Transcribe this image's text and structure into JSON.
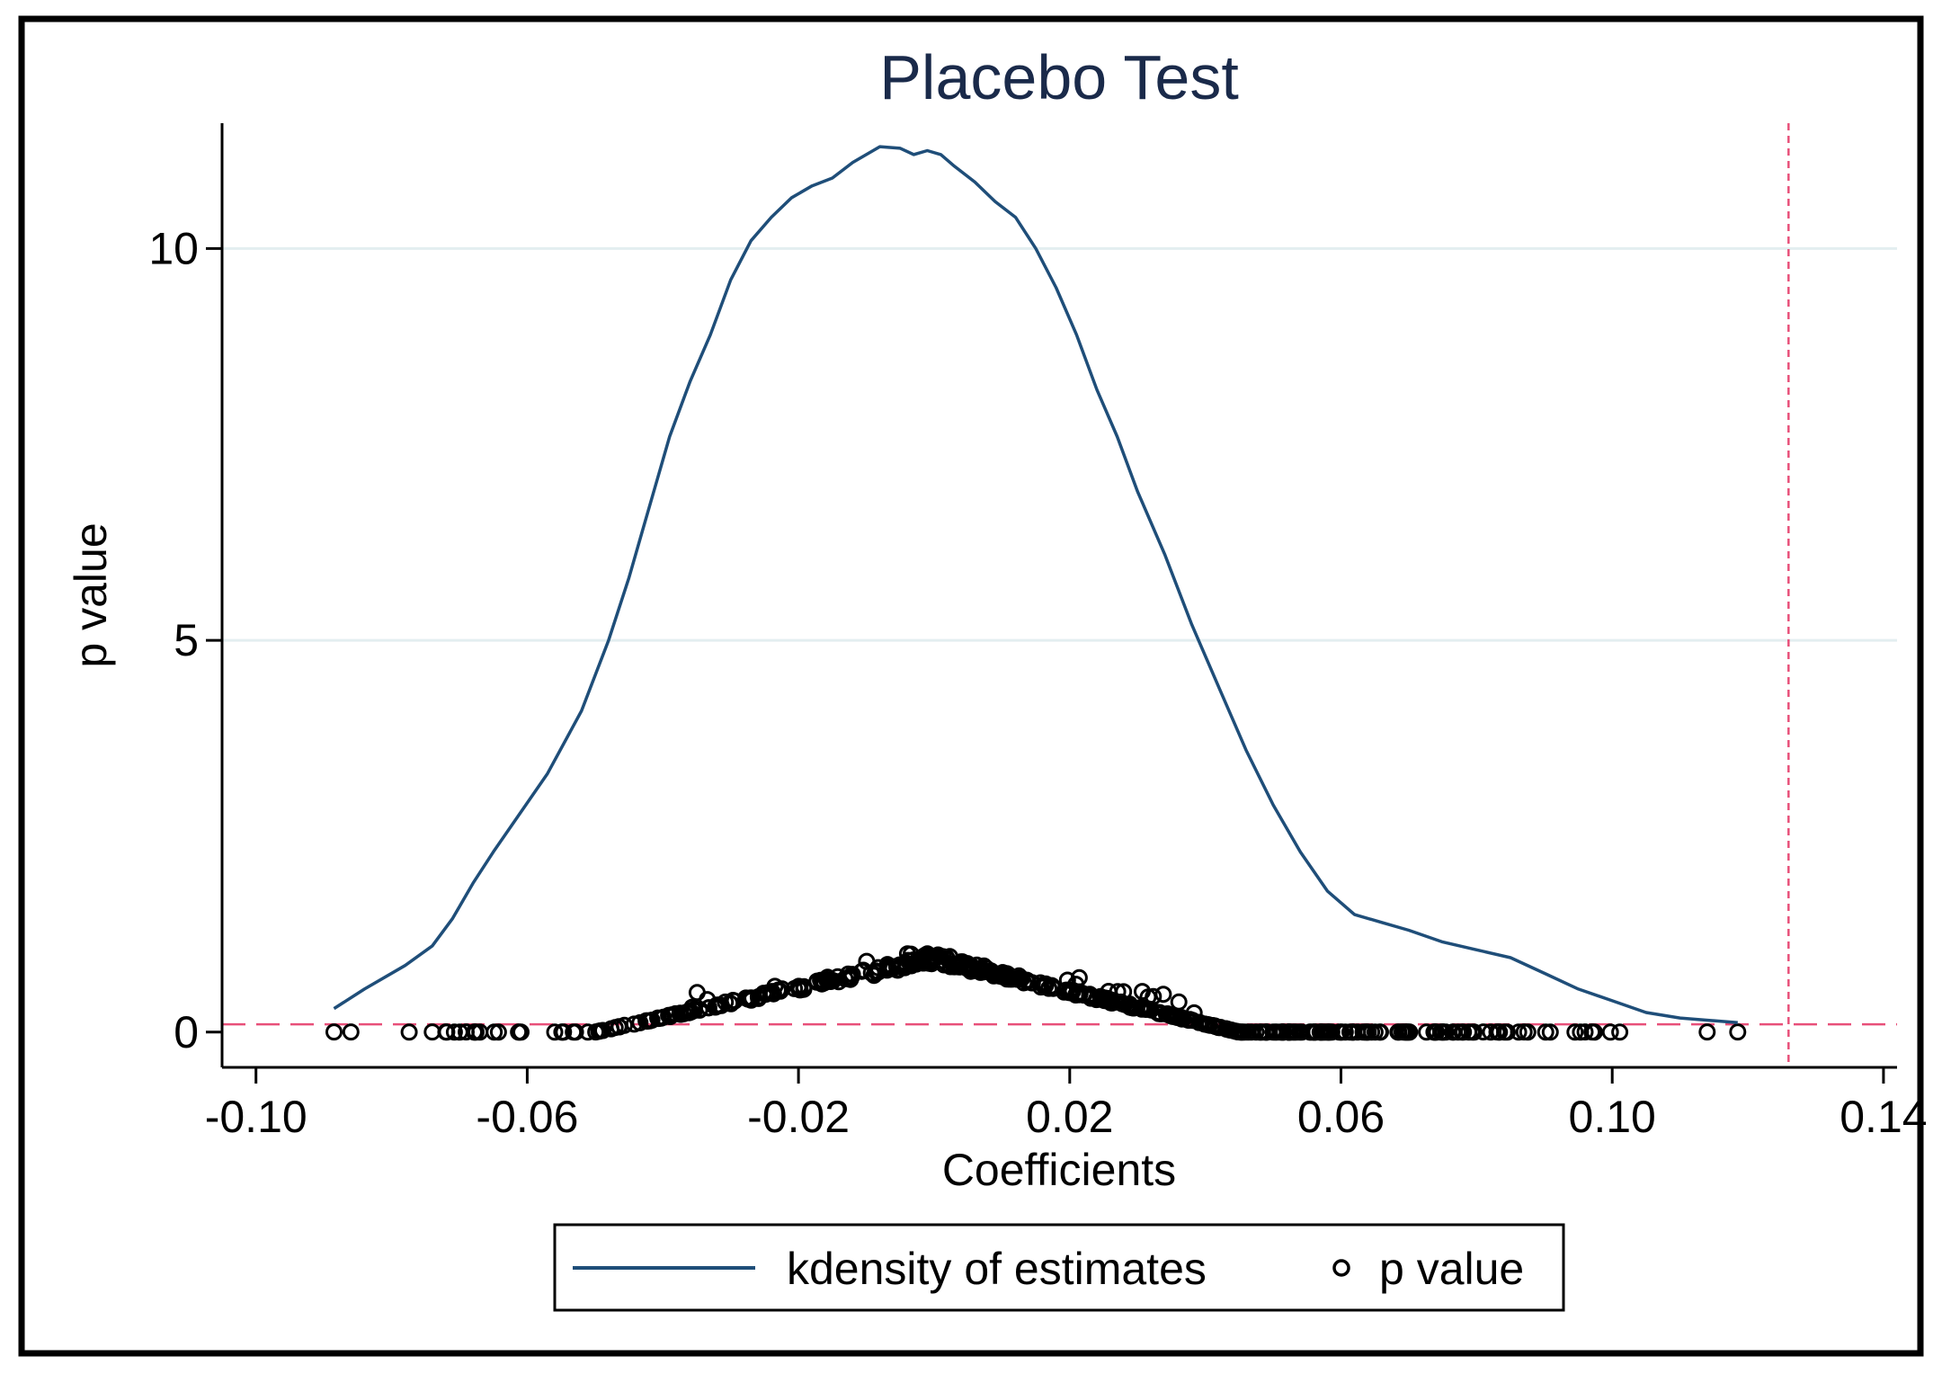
{
  "chart_data": {
    "type": "line",
    "title": "Placebo Test",
    "xlabel": "Coefficients",
    "ylabel": "p value",
    "xlim": [
      -0.105,
      0.142
    ],
    "ylim": [
      -0.45,
      11.6
    ],
    "x_ticks": [
      -0.1,
      -0.06,
      -0.02,
      0.02,
      0.06,
      0.1,
      0.14
    ],
    "x_tick_labels": [
      "-0.10",
      "-0.06",
      "-0.02",
      "0.02",
      "0.06",
      "0.10",
      "0.14"
    ],
    "y_ticks": [
      0,
      5,
      10
    ],
    "y_tick_labels": [
      "0",
      "5",
      "10"
    ],
    "grid": true,
    "reference_lines": {
      "vertical_x": 0.126,
      "horizontal_y": 0.1
    },
    "series": [
      {
        "name": "kdensity of estimates",
        "kind": "line",
        "color": "#1f4e79",
        "x": [
          -0.0885,
          -0.084,
          -0.078,
          -0.074,
          -0.071,
          -0.068,
          -0.065,
          -0.061,
          -0.057,
          -0.052,
          -0.048,
          -0.045,
          -0.043,
          -0.041,
          -0.039,
          -0.036,
          -0.033,
          -0.03,
          -0.027,
          -0.024,
          -0.021,
          -0.018,
          -0.015,
          -0.012,
          -0.008,
          -0.005,
          -0.003,
          -0.001,
          0.001,
          0.003,
          0.006,
          0.009,
          0.012,
          0.015,
          0.018,
          0.021,
          0.024,
          0.027,
          0.03,
          0.034,
          0.038,
          0.042,
          0.046,
          0.05,
          0.054,
          0.058,
          0.062,
          0.066,
          0.07,
          0.075,
          0.08,
          0.085,
          0.09,
          0.095,
          0.1,
          0.105,
          0.11,
          0.1185
        ],
        "y": [
          0.3,
          0.55,
          0.85,
          1.1,
          1.45,
          1.9,
          2.3,
          2.8,
          3.3,
          4.1,
          5.0,
          5.8,
          6.4,
          7.0,
          7.6,
          8.3,
          8.9,
          9.6,
          10.1,
          10.4,
          10.65,
          10.8,
          10.9,
          11.1,
          11.3,
          11.28,
          11.2,
          11.25,
          11.2,
          11.05,
          10.85,
          10.6,
          10.4,
          10.0,
          9.5,
          8.9,
          8.2,
          7.6,
          6.9,
          6.1,
          5.2,
          4.4,
          3.6,
          2.9,
          2.3,
          1.8,
          1.5,
          1.4,
          1.3,
          1.15,
          1.05,
          0.95,
          0.75,
          0.55,
          0.4,
          0.25,
          0.18,
          0.12
        ]
      },
      {
        "name": "p value",
        "kind": "scatter",
        "color": "#000000",
        "x_min": -0.0885,
        "x_max": 0.1185,
        "peak_x": 0.0,
        "peak_y": 1.0,
        "n_points": 500,
        "note": "p values fall from about 1.0 at coefficient 0 toward 0 in both tails"
      }
    ],
    "legend": {
      "position": "bottom-center",
      "entries": [
        "kdensity of estimates",
        "p value"
      ]
    }
  }
}
